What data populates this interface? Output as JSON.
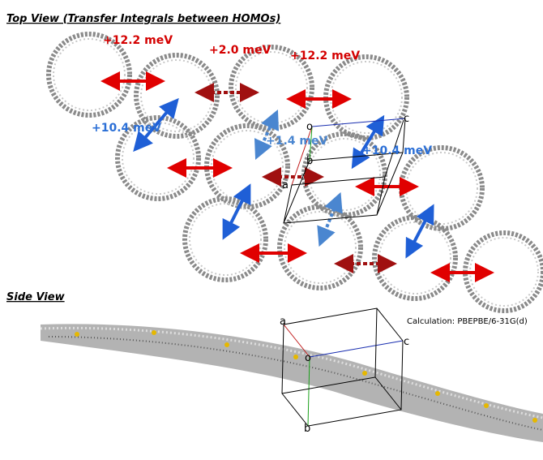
{
  "header": {
    "top_view": "Top View (Transfer Integrals between HOMOs)",
    "side_view": "Side View"
  },
  "labels": [
    {
      "text": "+12.2 meV",
      "color": "#d40000"
    },
    {
      "text": "+2.0 meV",
      "color": "#d40000"
    },
    {
      "text": "+12.2 meV",
      "color": "#d40000"
    },
    {
      "text": "+10.4 meV",
      "color": "#2b6fd6"
    },
    {
      "text": "+1.4 meV",
      "color": "#4a86d0"
    },
    {
      "text": "+10.4 meV",
      "color": "#2b6fd6"
    }
  ],
  "top_axes": {
    "o": "o",
    "a": "a",
    "b": "b",
    "c": "c"
  },
  "side_axes": {
    "o": "o",
    "a": "a",
    "b": "b",
    "c": "c"
  },
  "calculation": "Calculation: PBEPBE/6-31G(d)"
}
